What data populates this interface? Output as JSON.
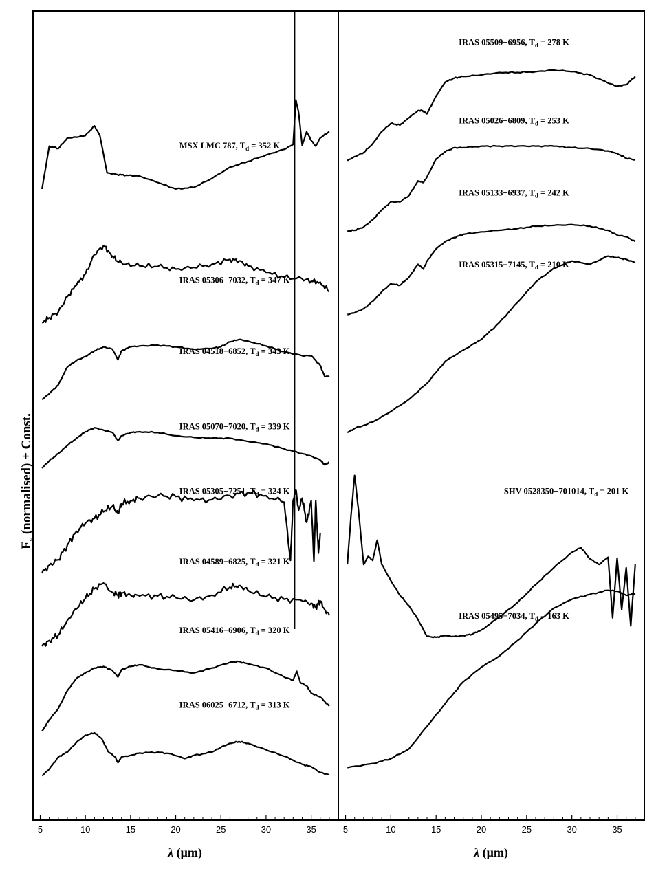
{
  "figure": {
    "ylabel": {
      "main": "F",
      "sub": "ν",
      "rest": " (normalised) + Const."
    },
    "xlabel": {
      "lambda": "λ",
      "unit": " (μm)"
    }
  },
  "chart_data": [
    {
      "type": "line",
      "panel": "left",
      "xlabel": "λ (μm)",
      "ylabel": "Fν (normalised) + Const.",
      "xlim": [
        4.2,
        38
      ],
      "ylim": [
        0,
        100
      ],
      "xticks": [
        5,
        10,
        15,
        20,
        25,
        30,
        35
      ],
      "grid": false,
      "series": [
        {
          "name": "MSX LMC 787,  T",
          "td": "352 K",
          "offset": 78,
          "label_x": 20.4,
          "label_y": 83,
          "x": [
            5.2,
            6,
            7,
            8,
            9,
            10,
            11,
            11.6,
            12.4,
            13.5,
            14.5,
            16,
            18,
            20,
            22,
            24,
            26,
            28,
            30,
            32,
            33,
            33.3,
            33.6,
            34,
            34.5,
            35,
            35.5,
            36,
            37
          ],
          "y": [
            0,
            5.3,
            5,
            6.3,
            6.4,
            6.6,
            7.8,
            6.6,
            2,
            1.8,
            1.7,
            1.6,
            0.8,
            0,
            0.2,
            1.3,
            2.7,
            3.4,
            4.2,
            4.9,
            5.5,
            11,
            9.5,
            5.4,
            7.1,
            6,
            5.3,
            6.3,
            7.1
          ]
        },
        {
          "name": "IRAS 05306−7032,  T",
          "td": "347 K",
          "offset": 61.5,
          "label_x": 20.4,
          "label_y": 66.4,
          "x": [
            5.2,
            6,
            7,
            8,
            9,
            10,
            11,
            12,
            12.8,
            13.5,
            14.5,
            16,
            18,
            20,
            22,
            24,
            26,
            27,
            28,
            30,
            32,
            34,
            35,
            36,
            37
          ],
          "y": [
            0,
            0.6,
            1.3,
            3.2,
            4.6,
            6,
            8.4,
            9.5,
            8.5,
            7.6,
            7.2,
            7,
            6.9,
            6.6,
            6.8,
            7.2,
            7.8,
            7.6,
            7,
            6.2,
            5.6,
            5.4,
            5.1,
            5,
            3.8
          ]
        },
        {
          "name": "IRAS 04518−6852,  T",
          "td": "343 K",
          "offset": 52,
          "label_x": 20.4,
          "label_y": 57.6,
          "x": [
            5.2,
            6,
            7,
            8,
            9,
            10,
            11,
            12,
            13,
            13.6,
            14,
            15,
            16,
            18,
            20,
            22,
            24,
            25,
            26,
            27,
            28,
            30,
            32,
            34,
            35,
            36,
            36.5,
            37
          ],
          "y": [
            0,
            0.7,
            1.8,
            4,
            4.8,
            5.3,
            6,
            6.5,
            6.2,
            4.9,
            6,
            6.5,
            6.6,
            6.7,
            6.5,
            6.2,
            6.3,
            6.5,
            7.1,
            7.4,
            7.2,
            6.6,
            5.9,
            5.4,
            5.4,
            4.2,
            2.8,
            2.9
          ]
        },
        {
          "name": "IRAS 05070−7020,  T",
          "td": "339 K",
          "offset": 43.5,
          "label_x": 20.4,
          "label_y": 48.3,
          "x": [
            5.2,
            6,
            7,
            8,
            9,
            10,
            11,
            12,
            13,
            13.6,
            14,
            15,
            16,
            18,
            20,
            22,
            24,
            26,
            28,
            30,
            32,
            34,
            35,
            36,
            36.5,
            37
          ],
          "y": [
            0,
            0.9,
            1.8,
            2.8,
            3.7,
            4.5,
            5,
            4.7,
            4.4,
            3.4,
            4,
            4.4,
            4.5,
            4.4,
            4,
            3.8,
            3.7,
            3.7,
            3.3,
            3,
            2.4,
            1.8,
            1.5,
            1,
            0.4,
            0.7
          ]
        },
        {
          "name": "IRAS 05305−7251,  T",
          "td": "324 K",
          "offset": 30.5,
          "label_x": 20.4,
          "label_y": 40.3,
          "x": [
            5.2,
            6,
            7,
            8,
            9,
            10,
            11,
            12,
            13,
            13.6,
            14,
            15,
            16,
            18,
            20,
            22,
            24,
            26,
            28,
            30,
            32,
            32.7,
            33,
            33.3,
            33.6,
            34,
            34.5,
            35,
            35.3,
            35.5,
            35.8,
            36
          ],
          "y": [
            0,
            1,
            1.7,
            3.5,
            5.2,
            6.2,
            6.8,
            7.6,
            8.3,
            7.4,
            8.6,
            9,
            9.3,
            9.6,
            9.5,
            9,
            9.1,
            9.6,
            10,
            9.6,
            8.8,
            1.6,
            9,
            10.3,
            7.8,
            9.3,
            6.3,
            9,
            1.5,
            9,
            2.5,
            5
          ]
        },
        {
          "name": "IRAS 04589−6825,  T",
          "td": "321 K",
          "offset": 21.5,
          "label_x": 20.4,
          "label_y": 31.6,
          "x": [
            5.2,
            6,
            7,
            8,
            9,
            10,
            11,
            12,
            12.8,
            13.6,
            14,
            15,
            16,
            18,
            20,
            22,
            24,
            26,
            27,
            28,
            30,
            32,
            34,
            35,
            35.5,
            36,
            36.5,
            37
          ],
          "y": [
            0,
            0.7,
            1.4,
            3.2,
            4.6,
            5.9,
            7.1,
            7.8,
            6.8,
            6.3,
            6.6,
            6.3,
            6.2,
            6.2,
            6,
            5.7,
            6.3,
            7.3,
            7.5,
            6.9,
            6.1,
            5.8,
            5.6,
            5.3,
            4.8,
            5.6,
            4.5,
            3.8
          ]
        },
        {
          "name": "IRAS 05416−6906,  T",
          "td": "320 K",
          "offset": 11,
          "label_x": 20.4,
          "label_y": 23.1,
          "x": [
            5.2,
            6,
            7,
            8,
            9,
            10,
            11,
            12,
            13,
            13.6,
            14,
            15,
            16,
            18,
            20,
            22,
            24,
            26,
            27,
            28,
            30,
            32,
            33,
            33.4,
            33.8,
            34.5,
            35,
            36,
            37
          ],
          "y": [
            0,
            1.4,
            2.8,
            5,
            6.5,
            7.2,
            7.8,
            8,
            7.5,
            6.7,
            7.6,
            8,
            8.2,
            7.7,
            7.5,
            7.2,
            7.8,
            8.5,
            8.6,
            8.3,
            7.8,
            6.7,
            6.3,
            7.4,
            6,
            5.6,
            4.7,
            4.2,
            3.1
          ]
        },
        {
          "name": "IRAS 06025−6712,  T",
          "td": "313 K",
          "offset": 5.5,
          "label_x": 20.4,
          "label_y": 13.9,
          "x": [
            5.2,
            6,
            7,
            8,
            9,
            10,
            11,
            11.8,
            12.5,
            13.3,
            13.6,
            14,
            15,
            16,
            18,
            19.5,
            21,
            22,
            24,
            25,
            26,
            27,
            28,
            30,
            32,
            34,
            35,
            36,
            37
          ],
          "y": [
            0,
            0.8,
            2.3,
            2.9,
            4.1,
            5,
            5.3,
            4.6,
            3,
            2.3,
            1.6,
            2.3,
            2.5,
            2.8,
            2.9,
            2.7,
            2.1,
            2.5,
            2.9,
            3.5,
            4,
            4.2,
            4,
            3.2,
            2.4,
            1.4,
            1.1,
            0.4,
            0.1
          ]
        }
      ]
    },
    {
      "type": "line",
      "panel": "right",
      "xlabel": "λ (μm)",
      "xlim": [
        4.2,
        38
      ],
      "ylim": [
        0,
        100
      ],
      "xticks": [
        5,
        10,
        15,
        20,
        25,
        30,
        35
      ],
      "grid": false,
      "series": [
        {
          "name": "IRAS 05509−6956,  T",
          "td": "278 K",
          "offset": 81.5,
          "label_x": 17.5,
          "label_y": 95.8,
          "x": [
            5.2,
            6,
            7,
            8,
            9,
            10,
            11,
            12,
            13,
            13.5,
            14,
            15,
            16,
            17,
            18,
            20,
            22,
            24,
            26,
            28,
            30,
            32,
            34,
            35,
            36,
            37
          ],
          "y": [
            0,
            0.5,
            1,
            2.1,
            3.6,
            4.6,
            4.4,
            5.3,
            6.2,
            6.2,
            5.8,
            8,
            9.7,
            10.2,
            10.4,
            10.6,
            10.9,
            10.9,
            11,
            11.2,
            11,
            10.6,
            9.6,
            9.2,
            9.4,
            10.4
          ]
        },
        {
          "name": "IRAS 05026−6809,  T",
          "td": "253 K",
          "offset": 72.8,
          "label_x": 17.5,
          "label_y": 86.1,
          "x": [
            5.2,
            6,
            7,
            8,
            9,
            10,
            11,
            12,
            13,
            13.6,
            14,
            15,
            16,
            17,
            18,
            20,
            22,
            24,
            26,
            28,
            30,
            32,
            34,
            35,
            36,
            37
          ],
          "y": [
            0,
            0.1,
            0.5,
            1.4,
            2.6,
            3.6,
            3.6,
            4.4,
            6.2,
            6,
            6.7,
            8.9,
            9.8,
            10.3,
            10.3,
            10.5,
            10.5,
            10.5,
            10.5,
            10.5,
            10.3,
            10.2,
            9.9,
            9.6,
            9,
            8.8
          ]
        },
        {
          "name": "IRAS 05133−6937,  T",
          "td": "242 K",
          "offset": 62.5,
          "label_x": 17.5,
          "label_y": 77.2,
          "x": [
            5.2,
            6,
            7,
            8,
            9,
            10,
            11,
            12,
            13,
            13.6,
            14,
            15,
            16,
            17,
            18,
            20,
            22,
            24,
            26,
            28,
            30,
            32,
            34,
            35,
            36,
            37
          ],
          "y": [
            0,
            0.2,
            0.7,
            1.6,
            2.8,
            3.8,
            3.6,
            4.6,
            6.2,
            5.6,
            6.6,
            8.1,
            9,
            9.5,
            9.9,
            10.2,
            10.4,
            10.6,
            10.9,
            11,
            11.1,
            10.9,
            10.4,
            9.8,
            9.6,
            9
          ]
        },
        {
          "name": "IRAS 05315−7145,  T",
          "td": "210 K",
          "offset": 47.9,
          "label_x": 17.5,
          "label_y": 68.3,
          "x": [
            5.2,
            6,
            8,
            10,
            12,
            14,
            16,
            18,
            20,
            22,
            24,
            26,
            28,
            30,
            32,
            34,
            35,
            36,
            37
          ],
          "y": [
            0,
            0.5,
            1.3,
            2.6,
            4.1,
            6.1,
            8.8,
            10.2,
            11.5,
            13.6,
            16.1,
            18.6,
            20.3,
            21.2,
            20.8,
            21.8,
            21.6,
            21.4,
            21
          ]
        },
        {
          "name": "SHV 0528350−701014,  T",
          "td": "201 K",
          "offset": 22.6,
          "label_x": 22.5,
          "label_y": 40.3,
          "x": [
            5.2,
            5.6,
            6,
            6.4,
            7,
            7.5,
            8,
            8.5,
            9,
            10,
            11,
            12,
            13,
            14,
            15,
            16,
            17,
            18,
            19,
            20,
            22,
            24,
            26,
            28,
            30,
            31,
            32,
            33,
            34,
            34.5,
            35,
            35.5,
            36,
            36.5,
            37
          ],
          "y": [
            9,
            15,
            20,
            16,
            9,
            10,
            9.5,
            12,
            9,
            7,
            5.2,
            3.9,
            2.2,
            0.1,
            0,
            0.2,
            0.1,
            0.2,
            0.4,
            0.9,
            2.5,
            4.3,
            6.5,
            8.6,
            10.5,
            11.1,
            9.7,
            9,
            9.9,
            2.4,
            9.8,
            3.4,
            8.6,
            1.4,
            9
          ]
        },
        {
          "name": "IRAS 05495−7034,  T",
          "td": "163 K",
          "offset": 6.5,
          "label_x": 17.5,
          "label_y": 24.9,
          "x": [
            5.2,
            8,
            10,
            12,
            14,
            16,
            18,
            20,
            22,
            24,
            26,
            28,
            30,
            32,
            34,
            35,
            36,
            37
          ],
          "y": [
            0,
            0.5,
            1.1,
            2.3,
            5.1,
            7.9,
            10.6,
            12.4,
            13.8,
            15.7,
            17.8,
            19.7,
            20.8,
            21.4,
            21.9,
            21.8,
            21.3,
            21.5
          ]
        }
      ]
    }
  ]
}
